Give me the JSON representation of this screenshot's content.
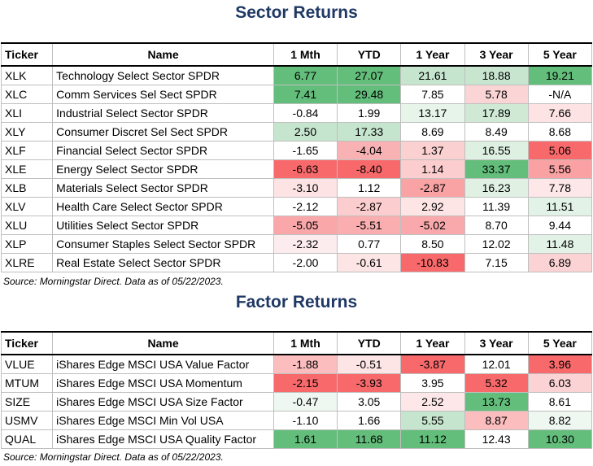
{
  "columns": [
    "Ticker",
    "Name",
    "1 Mth",
    "YTD",
    "1 Year",
    "3 Year",
    "5 Year"
  ],
  "sector": {
    "title": "Sector Returns",
    "source": "Source: Morningstar Direct. Data as of 05/22/2023.",
    "rows": [
      {
        "ticker": "XLK",
        "name": "Technology Select Sector SPDR",
        "cells": [
          {
            "v": "6.77",
            "bg": "#63be7b"
          },
          {
            "v": "27.07",
            "bg": "#63be7b"
          },
          {
            "v": "21.61",
            "bg": "#c6e5ce"
          },
          {
            "v": "18.88",
            "bg": "#c8e6cf"
          },
          {
            "v": "19.21",
            "bg": "#63be7b"
          }
        ]
      },
      {
        "ticker": "XLC",
        "name": "Comm Services Sel Sect SPDR",
        "cells": [
          {
            "v": "7.41",
            "bg": "#63be7b"
          },
          {
            "v": "29.48",
            "bg": "#63be7b"
          },
          {
            "v": "7.85",
            "bg": "#ffffff"
          },
          {
            "v": "5.78",
            "bg": "#fbd5d6"
          },
          {
            "v": "-N/A",
            "bg": "#ffffff"
          }
        ]
      },
      {
        "ticker": "XLI",
        "name": "Industrial Select Sector SPDR",
        "cells": [
          {
            "v": "-0.84",
            "bg": "#ffffff"
          },
          {
            "v": "1.99",
            "bg": "#ffffff"
          },
          {
            "v": "13.17",
            "bg": "#e6f4ea"
          },
          {
            "v": "17.89",
            "bg": "#cfe9d5"
          },
          {
            "v": "7.66",
            "bg": "#fde3e4"
          }
        ]
      },
      {
        "ticker": "XLY",
        "name": "Consumer Discret Sel Sect SPDR",
        "cells": [
          {
            "v": "2.50",
            "bg": "#c6e5ce"
          },
          {
            "v": "17.33",
            "bg": "#c6e5ce"
          },
          {
            "v": "8.69",
            "bg": "#ffffff"
          },
          {
            "v": "8.49",
            "bg": "#ffffff"
          },
          {
            "v": "8.68",
            "bg": "#ffffff"
          }
        ]
      },
      {
        "ticker": "XLF",
        "name": "Financial Select Sector SPDR",
        "cells": [
          {
            "v": "-1.65",
            "bg": "#ffffff"
          },
          {
            "v": "-4.04",
            "bg": "#f9b2b4"
          },
          {
            "v": "1.37",
            "bg": "#fbd0d1"
          },
          {
            "v": "16.55",
            "bg": "#ddf0e2"
          },
          {
            "v": "5.06",
            "bg": "#f8696b"
          }
        ]
      },
      {
        "ticker": "XLE",
        "name": "Energy Select Sector SPDR",
        "cells": [
          {
            "v": "-6.63",
            "bg": "#f8696b"
          },
          {
            "v": "-8.40",
            "bg": "#f8696b"
          },
          {
            "v": "1.14",
            "bg": "#fbcdce"
          },
          {
            "v": "33.37",
            "bg": "#63be7b"
          },
          {
            "v": "5.56",
            "bg": "#f9a1a3"
          }
        ]
      },
      {
        "ticker": "XLB",
        "name": "Materials Select Sector SPDR",
        "cells": [
          {
            "v": "-3.10",
            "bg": "#fde3e4"
          },
          {
            "v": "1.12",
            "bg": "#ffffff"
          },
          {
            "v": "-2.87",
            "bg": "#f9a3a5"
          },
          {
            "v": "16.23",
            "bg": "#e0f1e4"
          },
          {
            "v": "7.78",
            "bg": "#fde7e8"
          }
        ]
      },
      {
        "ticker": "XLV",
        "name": "Health Care Select Sector SPDR",
        "cells": [
          {
            "v": "-2.12",
            "bg": "#ffffff"
          },
          {
            "v": "-2.87",
            "bg": "#fccdce"
          },
          {
            "v": "2.92",
            "bg": "#fde4e5"
          },
          {
            "v": "11.39",
            "bg": "#ffffff"
          },
          {
            "v": "11.51",
            "bg": "#e3f2e7"
          }
        ]
      },
      {
        "ticker": "XLU",
        "name": "Utilities Select Sector SPDR",
        "cells": [
          {
            "v": "-5.05",
            "bg": "#faa7a9"
          },
          {
            "v": "-5.51",
            "bg": "#faaeb0"
          },
          {
            "v": "-5.02",
            "bg": "#f9a9ab"
          },
          {
            "v": "8.70",
            "bg": "#ffffff"
          },
          {
            "v": "9.44",
            "bg": "#ffffff"
          }
        ]
      },
      {
        "ticker": "XLP",
        "name": "Consumer Staples Select Sector SPDR",
        "cells": [
          {
            "v": "-2.32",
            "bg": "#fdeced"
          },
          {
            "v": "0.77",
            "bg": "#ffffff"
          },
          {
            "v": "8.50",
            "bg": "#ffffff"
          },
          {
            "v": "12.02",
            "bg": "#ffffff"
          },
          {
            "v": "11.48",
            "bg": "#e3f2e7"
          }
        ]
      },
      {
        "ticker": "XLRE",
        "name": "Real Estate Select Sector SPDR",
        "cells": [
          {
            "v": "-2.00",
            "bg": "#ffffff"
          },
          {
            "v": "-0.61",
            "bg": "#fde4e5"
          },
          {
            "v": "-10.83",
            "bg": "#f8696b"
          },
          {
            "v": "7.15",
            "bg": "#ffffff"
          },
          {
            "v": "6.89",
            "bg": "#fbd3d4"
          }
        ]
      }
    ]
  },
  "factor": {
    "title": "Factor Returns",
    "source": "Source: Morningstar Direct. Data as of 05/22/2023.",
    "rows": [
      {
        "ticker": "VLUE",
        "name": "iShares Edge MSCI USA Value Factor",
        "cells": [
          {
            "v": "-1.88",
            "bg": "#fbbdbe"
          },
          {
            "v": "-0.51",
            "bg": "#fde4e5"
          },
          {
            "v": "-3.87",
            "bg": "#f8696b"
          },
          {
            "v": "12.01",
            "bg": "#ffffff"
          },
          {
            "v": "3.96",
            "bg": "#f8696b"
          }
        ]
      },
      {
        "ticker": "MTUM",
        "name": "iShares Edge MSCI USA Momentum",
        "cells": [
          {
            "v": "-2.15",
            "bg": "#f8696b"
          },
          {
            "v": "-3.93",
            "bg": "#f8696b"
          },
          {
            "v": "3.95",
            "bg": "#ffffff"
          },
          {
            "v": "5.32",
            "bg": "#f8696b"
          },
          {
            "v": "6.03",
            "bg": "#fbd3d4"
          }
        ]
      },
      {
        "ticker": "SIZE",
        "name": "iShares Edge MSCI USA Size Factor",
        "cells": [
          {
            "v": "-0.47",
            "bg": "#eef7f0"
          },
          {
            "v": "3.05",
            "bg": "#ffffff"
          },
          {
            "v": "2.52",
            "bg": "#fde7e8"
          },
          {
            "v": "13.73",
            "bg": "#63be7b"
          },
          {
            "v": "8.61",
            "bg": "#ffffff"
          }
        ]
      },
      {
        "ticker": "USMV",
        "name": "iShares Edge MSCI Min Vol USA",
        "cells": [
          {
            "v": "-1.10",
            "bg": "#ffffff"
          },
          {
            "v": "1.66",
            "bg": "#ffffff"
          },
          {
            "v": "5.55",
            "bg": "#c6e5ce"
          },
          {
            "v": "8.87",
            "bg": "#fbbdbe"
          },
          {
            "v": "8.82",
            "bg": "#eef7f0"
          }
        ]
      },
      {
        "ticker": "QUAL",
        "name": "iShares Edge MSCI USA Quality Factor",
        "cells": [
          {
            "v": "1.61",
            "bg": "#63be7b"
          },
          {
            "v": "11.68",
            "bg": "#63be7b"
          },
          {
            "v": "11.12",
            "bg": "#63be7b"
          },
          {
            "v": "12.43",
            "bg": "#ffffff"
          },
          {
            "v": "10.30",
            "bg": "#63be7b"
          }
        ]
      }
    ]
  }
}
